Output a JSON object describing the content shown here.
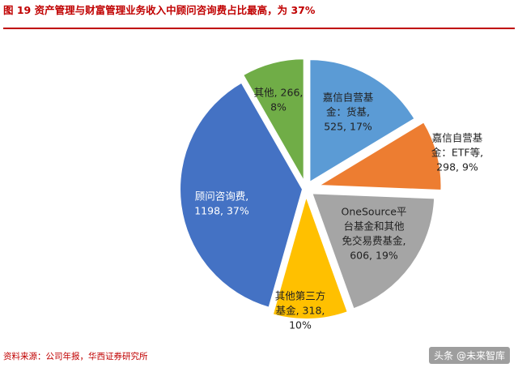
{
  "title": "图 19  资产管理与财富管理业务收入中顾问咨询费占比最高，为 37%",
  "source": "资料来源：公司年报，华西证券研究所",
  "watermark": "头条 @未来智库",
  "colors": {
    "title": "#c00000",
    "slice_blue_light": "#5b9bd5",
    "slice_orange": "#ed7d31",
    "slice_gray": "#a5a5a5",
    "slice_yellow": "#ffc000",
    "slice_blue_dark": "#4472c4",
    "slice_green": "#70ad47"
  },
  "chart_data": {
    "type": "pie",
    "title": "",
    "unit": "",
    "slices": [
      {
        "label_lines": [
          "嘉信自营基",
          "金：货基,",
          "525, 17%"
        ],
        "value": 525,
        "percent": 17,
        "color": "#5b9bd5",
        "label_color": "#222222"
      },
      {
        "label_lines": [
          "嘉信自营基",
          "金：ETF等,",
          "298, 9%"
        ],
        "value": 298,
        "percent": 9,
        "color": "#ed7d31",
        "label_color": "#222222"
      },
      {
        "label_lines": [
          "OneSource平",
          "台基金和其他",
          "免交易费基金,",
          "606, 19%"
        ],
        "value": 606,
        "percent": 19,
        "color": "#a5a5a5",
        "label_color": "#222222"
      },
      {
        "label_lines": [
          "其他第三方",
          "基金, 318,",
          "10%"
        ],
        "value": 318,
        "percent": 10,
        "color": "#ffc000",
        "label_color": "#222222"
      },
      {
        "label_lines": [
          "顾问咨询费,",
          "1198, 37%"
        ],
        "value": 1198,
        "percent": 37,
        "color": "#4472c4",
        "label_color": "#ffffff"
      },
      {
        "label_lines": [
          "其他, 266,",
          "8%"
        ],
        "value": 266,
        "percent": 8,
        "color": "#70ad47",
        "label_color": "#222222"
      }
    ]
  }
}
